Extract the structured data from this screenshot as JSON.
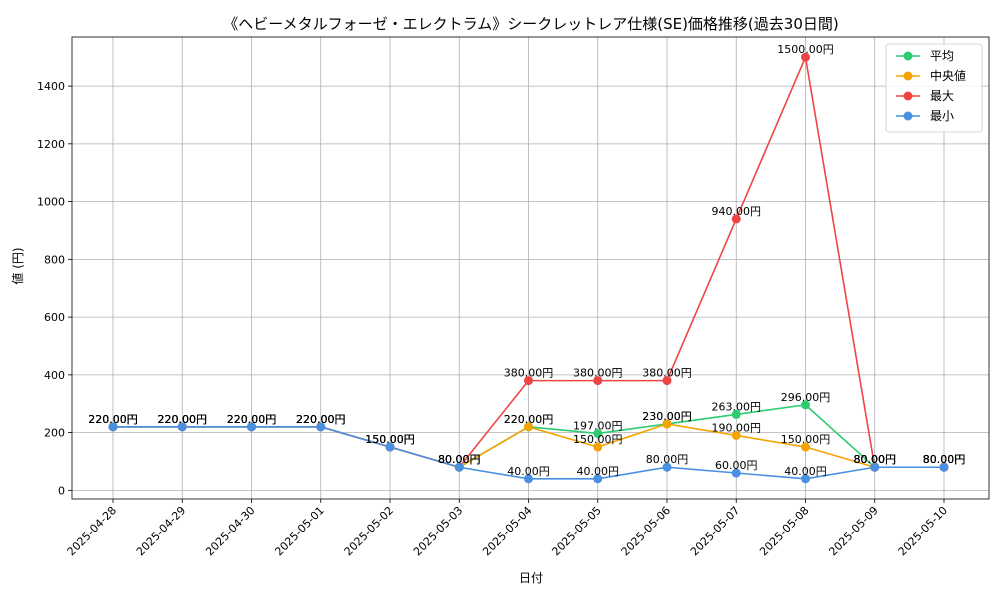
{
  "chart_data": {
    "type": "line",
    "title": "《ヘビーメタルフォーゼ・エレクトラム》シークレットレア仕様(SE)価格推移(過去30日間)",
    "xlabel": "日付",
    "ylabel": "値 (円)",
    "x": [
      "2025-04-28",
      "2025-04-29",
      "2025-04-30",
      "2025-05-01",
      "2025-05-02",
      "2025-05-03",
      "2025-05-04",
      "2025-05-05",
      "2025-05-06",
      "2025-05-07",
      "2025-05-08",
      "2025-05-09",
      "2025-05-10"
    ],
    "ylim": [
      -30,
      1570
    ],
    "yticks": [
      0,
      200,
      400,
      600,
      800,
      1000,
      1200,
      1400
    ],
    "grid": true,
    "legend_position": "top-right",
    "series": [
      {
        "name": "平均",
        "color": "#2ecc71",
        "values": [
          220,
          220,
          220,
          220,
          150,
          80,
          220,
          197,
          230,
          263,
          296,
          80,
          80
        ],
        "labels": [
          "220.00円",
          "220.00円",
          "220.00円",
          "220.00円",
          "150.00円",
          "80.00円",
          "220.00円",
          "197.00円",
          "230.00円",
          "263.00円",
          "296.00円",
          "80.00円",
          "80.00円"
        ]
      },
      {
        "name": "中央値",
        "color": "#f5a300",
        "values": [
          220,
          220,
          220,
          220,
          150,
          80,
          220,
          150,
          230,
          190,
          150,
          80,
          80
        ],
        "labels": [
          "220.00円",
          "220.00円",
          "220.00円",
          "220.00円",
          "150.00円",
          "80.00円",
          "220.00円",
          "150.00円",
          "230.00円",
          "190.00円",
          "150.00円",
          "80.00円",
          "80.00円"
        ]
      },
      {
        "name": "最大",
        "color": "#ef4444",
        "values": [
          220,
          220,
          220,
          220,
          150,
          80,
          380,
          380,
          380,
          940,
          1500,
          80,
          80
        ],
        "labels": [
          "220.00円",
          "220.00円",
          "220.00円",
          "220.00円",
          "150.00円",
          "80.00円",
          "380.00円",
          "380.00円",
          "380.00円",
          "940.00円",
          "1500.00円",
          "80.00円",
          "80.00円"
        ]
      },
      {
        "name": "最小",
        "color": "#4a90e2",
        "values": [
          220,
          220,
          220,
          220,
          150,
          80,
          40,
          40,
          80,
          60,
          40,
          80,
          80
        ],
        "labels": [
          "220.00円",
          "220.00円",
          "220.00円",
          "220.00円",
          "150.00円",
          "80.00円",
          "40.00円",
          "40.00円",
          "80.00円",
          "60.00円",
          "40.00円",
          "80.00円",
          "80.00円"
        ]
      }
    ]
  }
}
